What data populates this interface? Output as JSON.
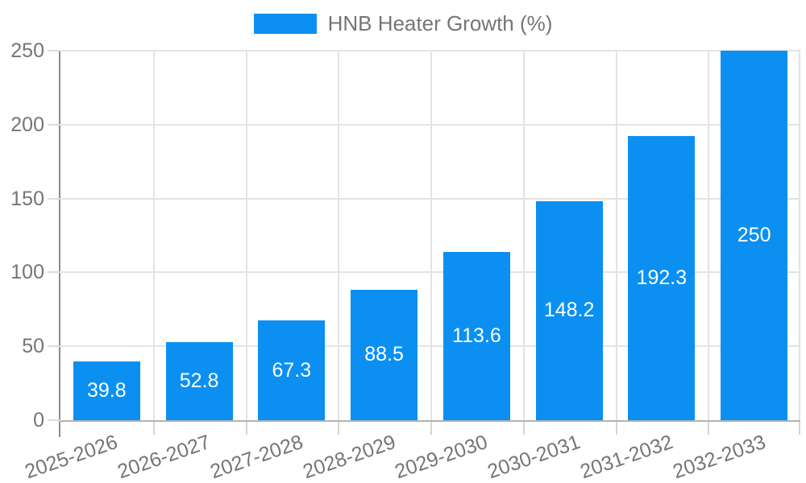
{
  "chart_data": {
    "type": "bar",
    "legend": "HNB Heater Growth (%)",
    "legend_position": "top",
    "categories": [
      "2025-2026",
      "2026-2027",
      "2027-2028",
      "2028-2029",
      "2029-2030",
      "2030-2031",
      "2031-2032",
      "2032-2033"
    ],
    "values": [
      39.8,
      52.8,
      67.3,
      88.5,
      113.6,
      148.2,
      192.3,
      250
    ],
    "ylim": [
      0,
      250
    ],
    "yticks": [
      0,
      50,
      100,
      150,
      200,
      250
    ],
    "grid": true,
    "bar_color": "#0b90f2",
    "bar_label_color": "#ffffff",
    "axis_text_color": "#757575"
  }
}
